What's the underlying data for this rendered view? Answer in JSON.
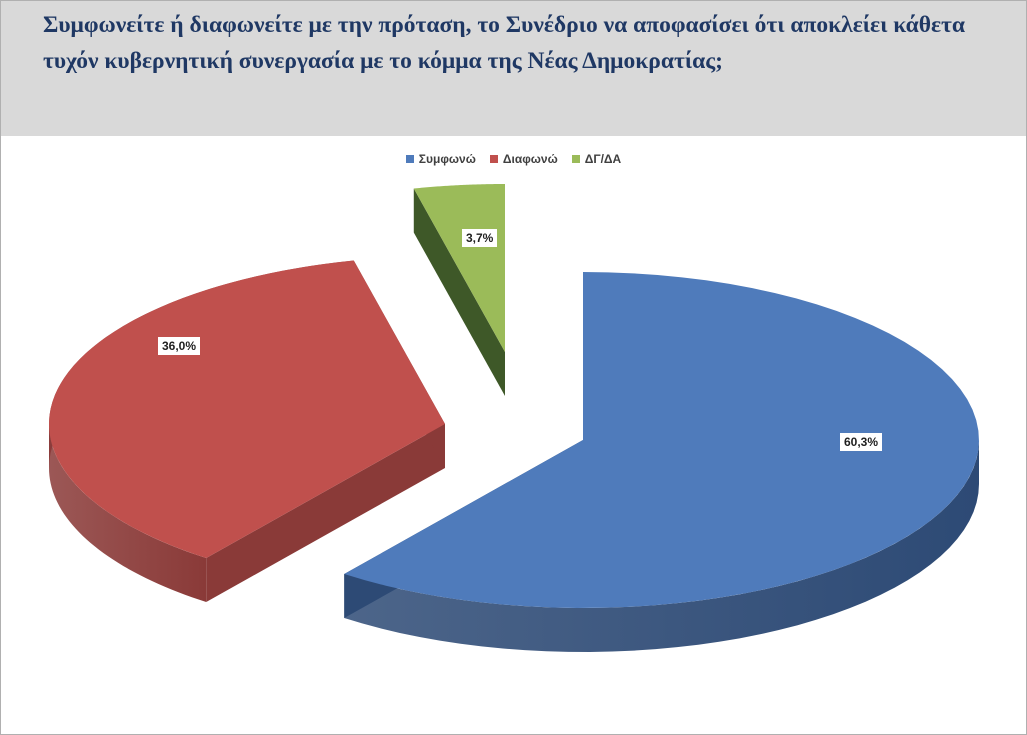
{
  "question": "Συμφωνείτε ή διαφωνείτε με την πρόταση, το Συνέδριο να αποφασίσει ότι αποκλείει κάθετα τυχόν κυβερνητική συνεργασία με το κόμμα της Νέας Δημοκρατίας;",
  "chart_data": {
    "type": "pie",
    "variant": "3d-exploded",
    "categories": [
      "Συμφωνώ",
      "Διαφωνώ",
      "ΔΓ/ΔΑ"
    ],
    "values": [
      60.3,
      36.0,
      3.7
    ],
    "data_labels": [
      "60,3%",
      "36,0%",
      "3,7%"
    ],
    "colors": [
      "#4f7bbb",
      "#c0504d",
      "#9bbb59"
    ],
    "side_colors": [
      "#2d4a75",
      "#8a3a38",
      "#3e5828"
    ],
    "legend_position": "top"
  }
}
